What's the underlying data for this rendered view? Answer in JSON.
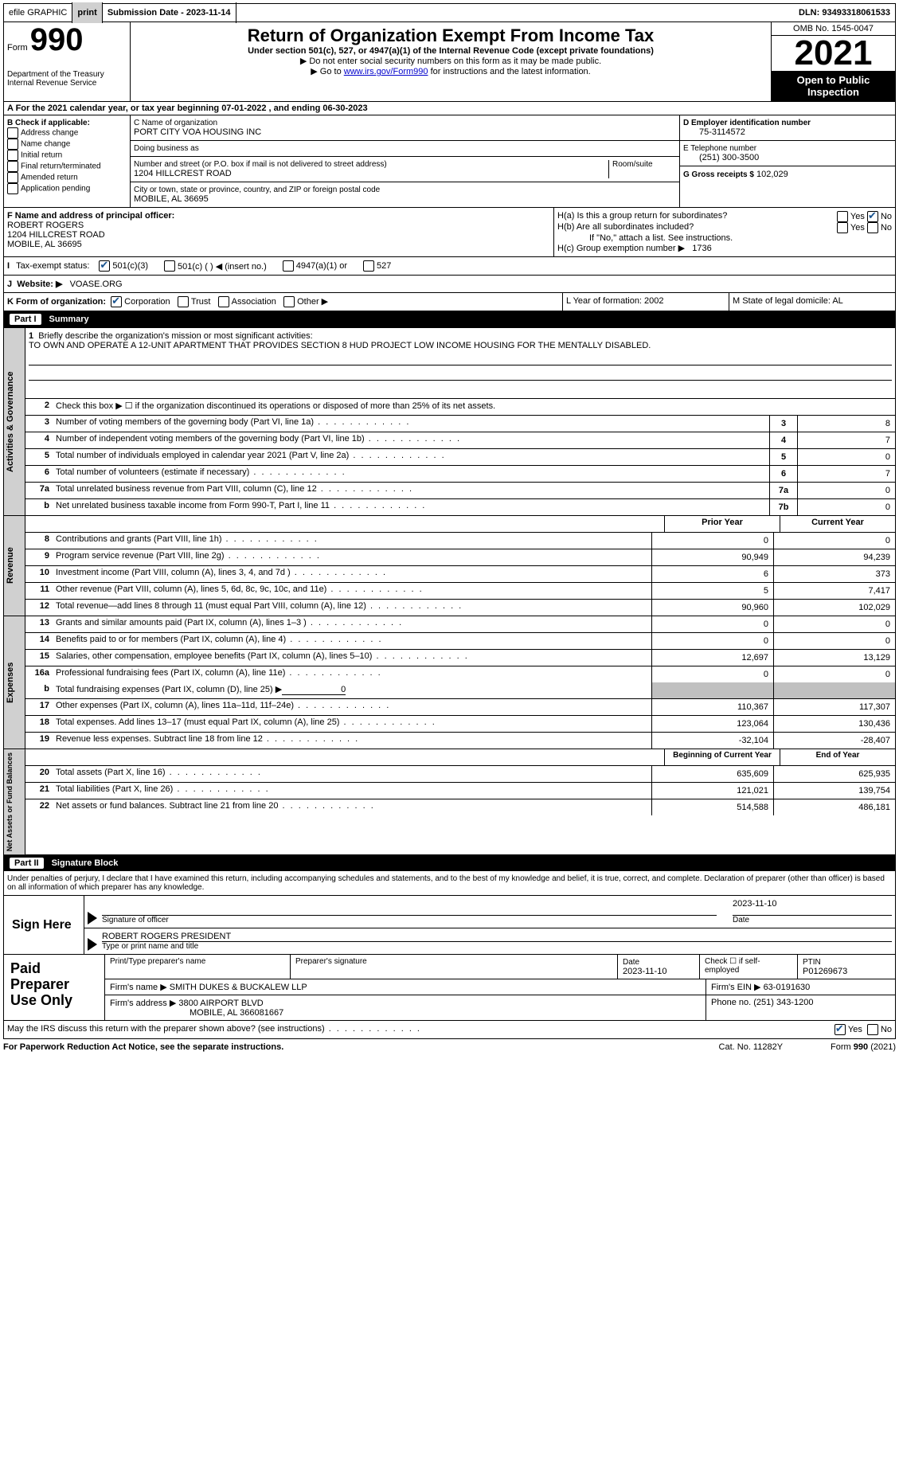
{
  "topbar": {
    "efile_label": "efile GRAPHIC",
    "print_btn": "print",
    "submission_label": "Submission Date - 2023-11-14",
    "dln_label": "DLN: 93493318061533"
  },
  "header": {
    "form_word": "Form",
    "form_number": "990",
    "dept": "Department of the Treasury",
    "irs": "Internal Revenue Service",
    "main_title": "Return of Organization Exempt From Income Tax",
    "sub1": "Under section 501(c), 527, or 4947(a)(1) of the Internal Revenue Code (except private foundations)",
    "sub2": "▶ Do not enter social security numbers on this form as it may be made public.",
    "sub3_a": "▶ Go to ",
    "sub3_link": "www.irs.gov/Form990",
    "sub3_b": " for instructions and the latest information.",
    "omb": "OMB No. 1545-0047",
    "year": "2021",
    "open_public": "Open to Public Inspection"
  },
  "section_a": "A  For the 2021 calendar year, or tax year beginning 07-01-2022    , and ending 06-30-2023",
  "col_b": {
    "title": "B Check if applicable:",
    "opts": [
      "Address change",
      "Name change",
      "Initial return",
      "Final return/terminated",
      "Amended return",
      "Application pending"
    ]
  },
  "col_c": {
    "name_label": "C Name of organization",
    "name": "PORT CITY VOA HOUSING INC",
    "dba_label": "Doing business as",
    "street_label": "Number and street (or P.O. box if mail is not delivered to street address)",
    "room_label": "Room/suite",
    "street": "1204 HILLCREST ROAD",
    "city_label": "City or town, state or province, country, and ZIP or foreign postal code",
    "city": "MOBILE, AL  36695"
  },
  "col_de": {
    "d_label": "D Employer identification number",
    "ein": "75-3114572",
    "e_label": "E Telephone number",
    "phone": "(251) 300-3500",
    "g_label": "G Gross receipts $",
    "gross": "102,029"
  },
  "section_f": {
    "label": "F Name and address of principal officer:",
    "name": "ROBERT ROGERS",
    "street": "1204 HILLCREST ROAD",
    "city": "MOBILE, AL  36695"
  },
  "section_h": {
    "ha": "H(a)  Is this a group return for subordinates?",
    "hb": "H(b)  Are all subordinates included?",
    "hb_note": "If \"No,\" attach a list. See instructions.",
    "hc": "H(c)  Group exemption number ▶",
    "hc_val": "1736",
    "yes": "Yes",
    "no": "No"
  },
  "tax_exempt": {
    "i": "I",
    "label": "Tax-exempt status:",
    "c3": "501(c)(3)",
    "c_other": "501(c) (  ) ◀ (insert no.)",
    "a1": "4947(a)(1) or",
    "s527": "527"
  },
  "website": {
    "j": "J",
    "label": "Website: ▶",
    "value": "VOASE.ORG"
  },
  "form_org": {
    "k": "K Form of organization:",
    "corp": "Corporation",
    "trust": "Trust",
    "assoc": "Association",
    "other": "Other ▶",
    "l": "L Year of formation: 2002",
    "m": "M State of legal domicile: AL"
  },
  "part1": {
    "label": "Part I",
    "title": "Summary"
  },
  "mission": {
    "prompt": "Briefly describe the organization's mission or most significant activities:",
    "text": "TO OWN AND OPERATE A 12-UNIT APARTMENT THAT PROVIDES SECTION 8 HUD PROJECT LOW INCOME HOUSING FOR THE MENTALLY DISABLED."
  },
  "line2": "Check this box ▶ ☐  if the organization discontinued its operations or disposed of more than 25% of its net assets.",
  "governance_rows": [
    {
      "n": "3",
      "t": "Number of voting members of the governing body (Part VI, line 1a)",
      "box": "3",
      "v": "8"
    },
    {
      "n": "4",
      "t": "Number of independent voting members of the governing body (Part VI, line 1b)",
      "box": "4",
      "v": "7"
    },
    {
      "n": "5",
      "t": "Total number of individuals employed in calendar year 2021 (Part V, line 2a)",
      "box": "5",
      "v": "0"
    },
    {
      "n": "6",
      "t": "Total number of volunteers (estimate if necessary)",
      "box": "6",
      "v": "7"
    },
    {
      "n": "7a",
      "t": "Total unrelated business revenue from Part VIII, column (C), line 12",
      "box": "7a",
      "v": "0"
    },
    {
      "n": "b",
      "t": "Net unrelated business taxable income from Form 990-T, Part I, line 11",
      "box": "7b",
      "v": "0"
    }
  ],
  "col_headers": {
    "prior": "Prior Year",
    "current": "Current Year"
  },
  "revenue_rows": [
    {
      "n": "8",
      "t": "Contributions and grants (Part VIII, line 1h)",
      "p": "0",
      "c": "0"
    },
    {
      "n": "9",
      "t": "Program service revenue (Part VIII, line 2g)",
      "p": "90,949",
      "c": "94,239"
    },
    {
      "n": "10",
      "t": "Investment income (Part VIII, column (A), lines 3, 4, and 7d )",
      "p": "6",
      "c": "373"
    },
    {
      "n": "11",
      "t": "Other revenue (Part VIII, column (A), lines 5, 6d, 8c, 9c, 10c, and 11e)",
      "p": "5",
      "c": "7,417"
    },
    {
      "n": "12",
      "t": "Total revenue—add lines 8 through 11 (must equal Part VIII, column (A), line 12)",
      "p": "90,960",
      "c": "102,029"
    }
  ],
  "expense_rows": [
    {
      "n": "13",
      "t": "Grants and similar amounts paid (Part IX, column (A), lines 1–3 )",
      "p": "0",
      "c": "0"
    },
    {
      "n": "14",
      "t": "Benefits paid to or for members (Part IX, column (A), line 4)",
      "p": "0",
      "c": "0"
    },
    {
      "n": "15",
      "t": "Salaries, other compensation, employee benefits (Part IX, column (A), lines 5–10)",
      "p": "12,697",
      "c": "13,129"
    },
    {
      "n": "16a",
      "t": "Professional fundraising fees (Part IX, column (A), line 11e)",
      "p": "0",
      "c": "0"
    }
  ],
  "line16b": {
    "n": "b",
    "t": "Total fundraising expenses (Part IX, column (D), line 25) ▶",
    "v": "0"
  },
  "expense_rows2": [
    {
      "n": "17",
      "t": "Other expenses (Part IX, column (A), lines 11a–11d, 11f–24e)",
      "p": "110,367",
      "c": "117,307"
    },
    {
      "n": "18",
      "t": "Total expenses. Add lines 13–17 (must equal Part IX, column (A), line 25)",
      "p": "123,064",
      "c": "130,436"
    },
    {
      "n": "19",
      "t": "Revenue less expenses. Subtract line 18 from line 12",
      "p": "-32,104",
      "c": "-28,407"
    }
  ],
  "netassets_headers": {
    "begin": "Beginning of Current Year",
    "end": "End of Year"
  },
  "netassets_rows": [
    {
      "n": "20",
      "t": "Total assets (Part X, line 16)",
      "p": "635,609",
      "c": "625,935"
    },
    {
      "n": "21",
      "t": "Total liabilities (Part X, line 26)",
      "p": "121,021",
      "c": "139,754"
    },
    {
      "n": "22",
      "t": "Net assets or fund balances. Subtract line 21 from line 20",
      "p": "514,588",
      "c": "486,181"
    }
  ],
  "side_tabs": {
    "gov": "Activities & Governance",
    "rev": "Revenue",
    "exp": "Expenses",
    "net": "Net Assets or Fund Balances"
  },
  "part2": {
    "label": "Part II",
    "title": "Signature Block"
  },
  "sig_decl": "Under penalties of perjury, I declare that I have examined this return, including accompanying schedules and statements, and to the best of my knowledge and belief, it is true, correct, and complete. Declaration of preparer (other than officer) is based on all information of which preparer has any knowledge.",
  "sign_here": "Sign Here",
  "sig_officer": "Signature of officer",
  "sig_date": "2023-11-10",
  "sig_date_label": "Date",
  "sig_name": "ROBERT ROGERS  PRESIDENT",
  "sig_name_label": "Type or print name and title",
  "paid_prep": "Paid Preparer Use Only",
  "prep": {
    "name_label": "Print/Type preparer's name",
    "sig_label": "Preparer's signature",
    "date_label": "Date",
    "date": "2023-11-10",
    "self_emp": "Check ☐ if self-employed",
    "ptin_label": "PTIN",
    "ptin": "P01269673",
    "firm_name_label": "Firm's name     ▶",
    "firm_name": "SMITH DUKES & BUCKALEW LLP",
    "firm_ein_label": "Firm's EIN ▶",
    "firm_ein": "63-0191630",
    "firm_addr_label": "Firm's address ▶",
    "firm_addr1": "3800 AIRPORT BLVD",
    "firm_addr2": "MOBILE, AL  366081667",
    "phone_label": "Phone no.",
    "phone": "(251) 343-1200"
  },
  "discuss": "May the IRS discuss this return with the preparer shown above? (see instructions)",
  "footer": {
    "left": "For Paperwork Reduction Act Notice, see the separate instructions.",
    "mid": "Cat. No. 11282Y",
    "right": "Form 990 (2021)"
  }
}
